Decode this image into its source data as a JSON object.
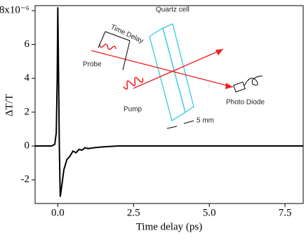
{
  "chart_data": {
    "type": "line",
    "x_label": "Time delay (ps)",
    "y_label": "ΔT/T",
    "x": [
      -0.75,
      -0.2,
      -0.1,
      -0.05,
      -0.02,
      0.0,
      0.02,
      0.05,
      0.08,
      0.12,
      0.2,
      0.3,
      0.4,
      0.5,
      0.6,
      0.7,
      0.8,
      0.9,
      1.0,
      1.2,
      1.5,
      2.0,
      3.0,
      5.0,
      8.1
    ],
    "series": [
      {
        "color": "#000000",
        "values": [
          0,
          0,
          0.1,
          0.8,
          4.0,
          8.2,
          5.0,
          0,
          -3.0,
          -2.5,
          -1.4,
          -0.8,
          -0.6,
          -0.3,
          -0.4,
          -0.2,
          -0.25,
          -0.1,
          -0.15,
          -0.1,
          -0.05,
          0,
          0,
          0,
          0
        ]
      }
    ],
    "xlim": [
      -0.75,
      8.1
    ],
    "ylim": [
      -3.4,
      8.3
    ],
    "xticks": [
      {
        "value": 0,
        "label": "0.0"
      },
      {
        "value": 2.5,
        "label": "2.5"
      },
      {
        "value": 5,
        "label": "5.0"
      },
      {
        "value": 7.5,
        "label": "7.5"
      }
    ],
    "yticks": [
      -2,
      0,
      2,
      4,
      6,
      {
        "value": 8,
        "label": "8x10⁻⁶"
      }
    ],
    "annotations": [
      "Quartz cell",
      "Time Delay",
      "Probe",
      "Pump",
      "Photo Diode",
      "5 mm"
    ]
  }
}
